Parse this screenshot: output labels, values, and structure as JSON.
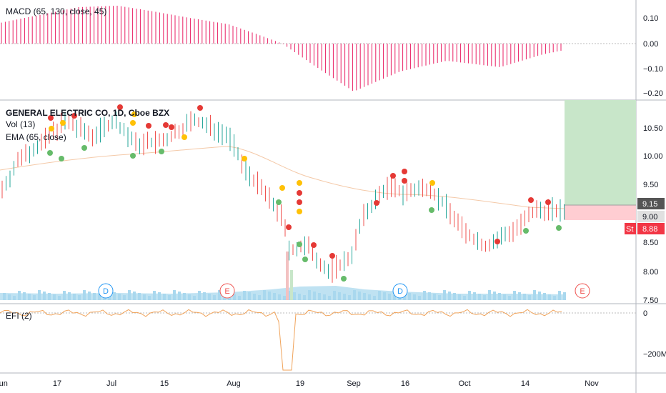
{
  "macd_pane": {
    "label": "MACD (65, 130, close, 45)",
    "axis": [
      "0.10",
      "0.00",
      "−0.10",
      "−0.20"
    ]
  },
  "price_pane": {
    "title": "GENERAL ELECTRIC CO, 1D, Cboe BZX",
    "vol_label": "Vol (13)",
    "ema_label": "EMA (65, close)",
    "axis": [
      "10.50",
      "10.00",
      "9.50",
      "9.00",
      "8.50",
      "8.00",
      "7.50"
    ],
    "price_badge": "9.15",
    "target_badge": "9.00",
    "stop_badge": "8.88",
    "stop_prefix": "St"
  },
  "efi_pane": {
    "label": "EFI (2)",
    "axis": [
      "0",
      "−200M"
    ]
  },
  "events": [
    "D",
    "E",
    "D",
    "E"
  ],
  "time_axis": [
    "Jun",
    "17",
    "Jul",
    "15",
    "Aug",
    "19",
    "Sep",
    "16",
    "Oct",
    "14",
    "Nov"
  ],
  "colors": {
    "up": "#26a69a",
    "down": "#ef5350",
    "macd": "#e91e63",
    "ema": "#f4c9a8",
    "efi": "#f0a35a",
    "dot_red": "#e53935",
    "dot_yellow": "#ffc107",
    "dot_green": "#66bb6a",
    "event_d": "#2196f3",
    "event_e": "#ef5350",
    "profit_zone": "#c8e6c9",
    "loss_zone": "#ffcdd2",
    "volume": "#a9d8ee"
  }
}
